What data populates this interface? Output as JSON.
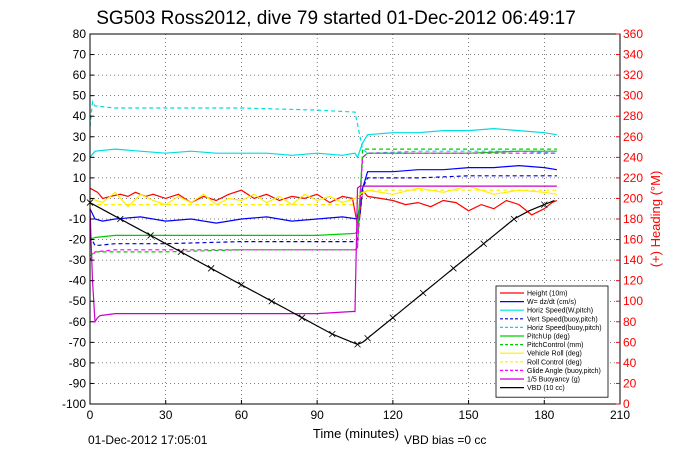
{
  "chart_data": {
    "type": "line",
    "title": "SG503 Ross2012, dive 79 started 01-Dec-2012 06:49:17",
    "xlabel": "Time (minutes)",
    "ylabel_right": "(+) Heading (°M)",
    "xlim": [
      0,
      210
    ],
    "ylim": [
      -100,
      80
    ],
    "ylim_right": [
      0,
      360
    ],
    "x_ticks": [
      "0",
      "30",
      "60",
      "90",
      "120",
      "150",
      "180",
      "210"
    ],
    "y_ticks": [
      "80",
      "70",
      "60",
      "50",
      "40",
      "30",
      "20",
      "10",
      "0",
      "-10",
      "-20",
      "-30",
      "-40",
      "-50",
      "-60",
      "-70",
      "-80",
      "-90",
      "-100"
    ],
    "y2_ticks": [
      "360",
      "340",
      "320",
      "300",
      "280",
      "260",
      "240",
      "220",
      "200",
      "180",
      "160",
      "140",
      "120",
      "100",
      "80",
      "60",
      "40",
      "20",
      "0"
    ],
    "grid": "dotted",
    "legend_position": "lower-right",
    "footer_left": "01-Dec-2012 17:05:01",
    "footer_right": "VBD bias =0 cc",
    "series": [
      {
        "name": "Height (10m)",
        "color": "#ff0000",
        "style": "solid",
        "x": [
          0,
          3,
          5,
          8,
          12,
          15,
          18,
          22,
          25,
          30,
          35,
          40,
          45,
          50,
          55,
          60,
          65,
          70,
          75,
          80,
          85,
          90,
          95,
          100,
          104,
          106,
          107,
          108,
          110,
          115,
          120,
          125,
          130,
          135,
          140,
          145,
          150,
          155,
          160,
          165,
          170,
          175,
          180,
          183,
          185
        ],
        "y": [
          5,
          3,
          0,
          1,
          2,
          1,
          3,
          1,
          2,
          0,
          2,
          -2,
          1,
          -1,
          2,
          4,
          0,
          2,
          -1,
          1,
          0,
          2,
          -2,
          1,
          0,
          -13,
          -8,
          4,
          1,
          0,
          -1,
          -3,
          -2,
          -4,
          -1,
          -2,
          -6,
          -3,
          -5,
          -1,
          -3,
          -8,
          -5,
          -2,
          -1
        ]
      },
      {
        "name": "W= dz/dt (cm/s)",
        "color": "#0000ff",
        "style": "solid",
        "x": [
          0,
          2,
          5,
          10,
          20,
          30,
          40,
          50,
          60,
          70,
          80,
          90,
          100,
          106,
          108,
          110,
          120,
          130,
          140,
          150,
          160,
          170,
          180,
          185
        ],
        "y": [
          -5,
          -10,
          -11,
          -10,
          -9,
          -11,
          -10,
          -12,
          -10,
          -9,
          -11,
          -10,
          -9,
          -10,
          5,
          13,
          13,
          14,
          14,
          15,
          15,
          16,
          15,
          14
        ]
      },
      {
        "name": "Horiz Speed(W,pitch)",
        "color": "#00dddd",
        "style": "solid",
        "x": [
          0,
          2,
          10,
          20,
          30,
          40,
          50,
          60,
          70,
          80,
          90,
          100,
          105,
          106,
          108,
          110,
          120,
          130,
          140,
          150,
          160,
          170,
          180,
          185
        ],
        "y": [
          20,
          23,
          24,
          23,
          22,
          23,
          22,
          22,
          22,
          21,
          22,
          21,
          22,
          20,
          27,
          31,
          32,
          32,
          33,
          33,
          34,
          33,
          32,
          31
        ]
      },
      {
        "name": "Vert Speed(buoy,pitch)",
        "color": "#0000cc",
        "style": "dashed",
        "x": [
          0,
          2,
          10,
          30,
          60,
          90,
          105,
          106,
          108,
          110,
          130,
          150,
          170,
          185
        ],
        "y": [
          -18,
          -23,
          -22,
          -22,
          -21,
          -21,
          -21,
          -20,
          5,
          10,
          10,
          11,
          11,
          11
        ]
      },
      {
        "name": "Horiz Speed(buoy,pitch)",
        "color": "#00dddd",
        "style": "dashed",
        "x": [
          0,
          1,
          2,
          10,
          30,
          60,
          90,
          105,
          106,
          108,
          110,
          130,
          150,
          170,
          185
        ],
        "y": [
          35,
          47,
          45,
          44,
          44,
          44,
          43,
          42,
          36,
          24,
          22,
          23,
          23,
          23,
          22
        ]
      },
      {
        "name": "PitchUp (deg)",
        "color": "#00cc00",
        "style": "solid",
        "x": [
          0,
          2,
          10,
          30,
          60,
          90,
          105,
          106,
          108,
          110,
          130,
          150,
          170,
          185
        ],
        "y": [
          -20,
          -19,
          -18,
          -18,
          -18,
          -18,
          -17,
          -16,
          20,
          22,
          22,
          22,
          23,
          23
        ]
      },
      {
        "name": "PitchControl (mm)",
        "color": "#00cc00",
        "style": "dashed",
        "x": [
          0,
          2,
          10,
          30,
          60,
          90,
          105,
          106,
          108,
          110,
          130,
          150,
          170,
          185
        ],
        "y": [
          -28,
          -26,
          -26,
          -26,
          -25,
          -25,
          -25,
          -24,
          24,
          24,
          24,
          24,
          24,
          24
        ]
      },
      {
        "name": "Vehicle Roll (deg)",
        "color": "#ffee00",
        "style": "solid",
        "x": [
          0,
          5,
          10,
          15,
          20,
          25,
          30,
          35,
          40,
          45,
          50,
          55,
          60,
          65,
          70,
          75,
          80,
          85,
          90,
          95,
          100,
          105,
          108,
          110,
          120,
          130,
          140,
          150,
          160,
          170,
          180,
          185
        ],
        "y": [
          0,
          -2,
          3,
          -4,
          2,
          -1,
          -3,
          1,
          -2,
          2,
          -3,
          0,
          -1,
          2,
          -2,
          1,
          -3,
          2,
          -1,
          1,
          -2,
          0,
          3,
          4,
          2,
          5,
          3,
          6,
          2,
          4,
          3,
          2
        ]
      },
      {
        "name": "Roll Control (deg)",
        "color": "#ffee00",
        "style": "dashed",
        "x": [
          0,
          10,
          30,
          60,
          90,
          105,
          108,
          110,
          130,
          150,
          170,
          185
        ],
        "y": [
          -3,
          -3,
          -3,
          -3,
          -3,
          -3,
          2,
          4,
          4,
          4,
          4,
          4
        ]
      },
      {
        "name": "Glide Angle (buoy,pitch)",
        "color": "#ff00ff",
        "style": "dashed",
        "x": [
          0,
          2,
          10,
          30,
          60,
          90,
          105,
          106,
          108,
          110,
          130,
          150,
          170,
          185
        ],
        "y": [
          -30,
          -26,
          -25,
          -25,
          -25,
          -25,
          -25,
          -24,
          20,
          22,
          22,
          22,
          22,
          22
        ]
      },
      {
        "name": "1/5 Buoyancy (g)",
        "color": "#cc00cc",
        "style": "solid",
        "x": [
          0,
          1,
          2,
          3,
          4,
          10,
          30,
          60,
          90,
          104,
          105,
          106,
          107,
          108,
          110,
          130,
          150,
          170,
          185
        ],
        "y": [
          -5,
          -40,
          -60,
          -58,
          -57,
          -56,
          -56,
          -56,
          -56,
          -55,
          -55,
          5,
          6,
          6,
          6,
          6,
          6,
          6,
          6
        ]
      },
      {
        "name": "VBD (10 cc)",
        "color": "#000000",
        "style": "solid",
        "x": [
          0,
          6,
          12,
          18,
          24,
          30,
          36,
          42,
          48,
          54,
          60,
          66,
          72,
          78,
          84,
          90,
          96,
          102,
          106,
          108,
          110,
          114,
          120,
          126,
          132,
          138,
          144,
          150,
          156,
          162,
          168,
          174,
          180,
          184
        ],
        "y": [
          -2,
          -6,
          -10,
          -14,
          -18,
          -22,
          -26,
          -30,
          -34,
          -38,
          -42,
          -46,
          -50,
          -54,
          -58,
          -62,
          -66,
          -69,
          -71,
          -70,
          -68,
          -64,
          -58,
          -52,
          -46,
          -40,
          -34,
          -28,
          -22,
          -16,
          -10,
          -6,
          -3,
          -1
        ]
      }
    ]
  }
}
